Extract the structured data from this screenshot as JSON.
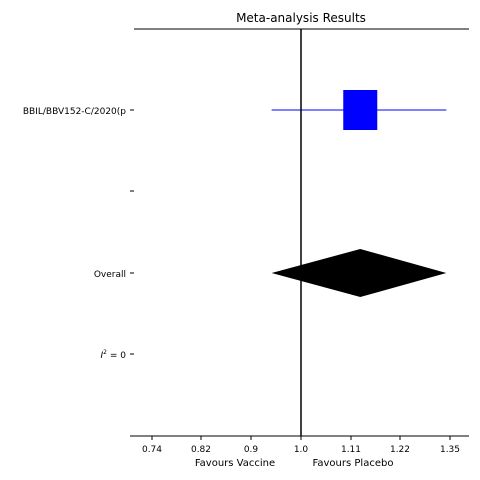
{
  "chart_data": {
    "type": "forest",
    "title": "Meta-analysis Results",
    "xlabel_left": "Favours Vaccine",
    "xlabel_right": "Favours Placebo",
    "x_scale": "log",
    "x_ticks": [
      "0.74",
      "0.82",
      "0.9",
      "1.0",
      "1.11",
      "1.22",
      "1.35"
    ],
    "reference_line": 1.0,
    "rows": [
      {
        "label": "BBIL/BBV152-C/2020(p",
        "kind": "study",
        "estimate": 1.13,
        "ci_low": 0.94,
        "ci_high": 1.34,
        "color": "#0000ff"
      },
      {
        "label": "",
        "kind": "blank"
      },
      {
        "label": "Overall",
        "kind": "overall",
        "estimate": 1.13,
        "ci_low": 0.94,
        "ci_high": 1.34,
        "color": "#000000"
      },
      {
        "label": "I² = 0",
        "kind": "stat"
      }
    ],
    "grid": false
  }
}
